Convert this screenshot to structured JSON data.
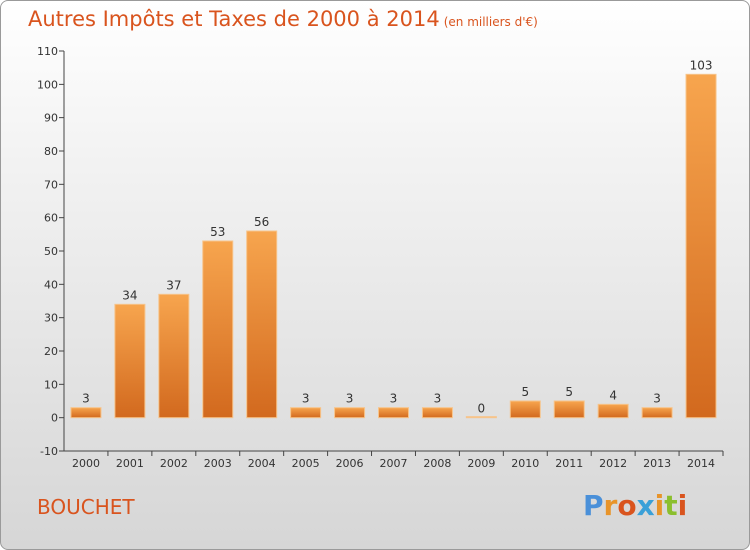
{
  "title": "Autres Impôts et Taxes de 2000 à 2014",
  "subtitle": "(en milliers d'€)",
  "commune": "BOUCHET",
  "logo": {
    "text": "Proxiti",
    "letter_colors": [
      "#4a90d9",
      "#e8942a",
      "#d9541e",
      "#3aa0d8",
      "#e8942a",
      "#8bbf2e",
      "#d9541e"
    ]
  },
  "colors": {
    "bar_light": "#f7a54e",
    "bar_dark": "#d2691e",
    "text": "#d9541e"
  },
  "chart_data": {
    "type": "bar",
    "title": "Autres Impôts et Taxes de 2000 à 2014",
    "subtitle": "(en milliers d'€)",
    "categories": [
      "2000",
      "2001",
      "2002",
      "2003",
      "2004",
      "2005",
      "2006",
      "2007",
      "2008",
      "2009",
      "2010",
      "2011",
      "2012",
      "2013",
      "2014"
    ],
    "values": [
      3,
      34,
      37,
      53,
      56,
      3,
      3,
      3,
      3,
      0,
      5,
      5,
      4,
      3,
      103
    ],
    "ylim": [
      -10,
      110
    ],
    "yticks": [
      -10,
      0,
      10,
      20,
      30,
      40,
      50,
      60,
      70,
      80,
      90,
      100,
      110
    ],
    "grid": false,
    "legend": "none"
  }
}
